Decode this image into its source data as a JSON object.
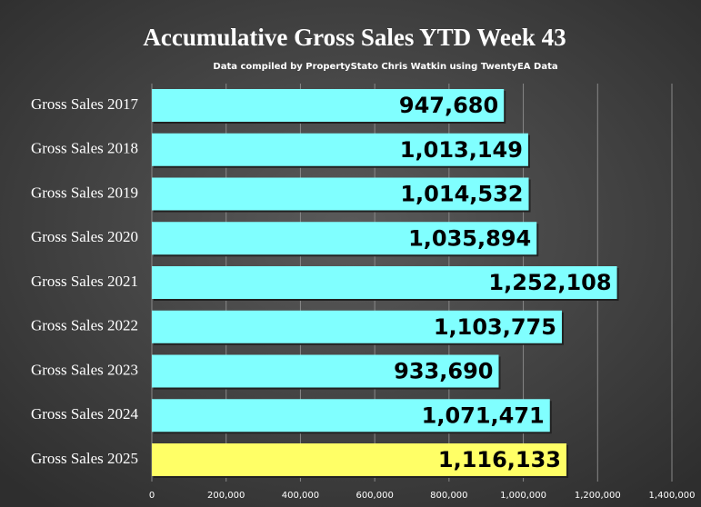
{
  "chart_data": {
    "type": "hbar",
    "title": "Accumulative Gross Sales YTD Week 43",
    "subtitle": "Data compiled by PropertyStato Chris Watkin using TwentyEA Data",
    "categories": [
      "Gross Sales 2017",
      "Gross Sales 2018",
      "Gross Sales 2019",
      "Gross Sales 2020",
      "Gross Sales 2021",
      "Gross Sales 2022",
      "Gross Sales 2023",
      "Gross Sales 2024",
      "Gross Sales 2025"
    ],
    "values": [
      947680,
      1013149,
      1014532,
      1035894,
      1252108,
      1103775,
      933690,
      1071471,
      1116133
    ],
    "value_labels": [
      "947,680",
      "1,013,149",
      "1,014,532",
      "1,035,894",
      "1,252,108",
      "1,103,775",
      "933,690",
      "1,071,471",
      "1,116,133"
    ],
    "colors": [
      "#80ffff",
      "#80ffff",
      "#80ffff",
      "#80ffff",
      "#80ffff",
      "#80ffff",
      "#80ffff",
      "#80ffff",
      "#ffff66"
    ],
    "xlim": [
      0,
      1400000
    ],
    "xticks": [
      0,
      {
        "value": 200000,
        "label": "200,000"
      },
      {
        "value": 400000,
        "label": "400,000"
      },
      {
        "value": 600000,
        "label": "600,000"
      },
      {
        "value": 800000,
        "label": "800,000"
      },
      {
        "value": 1000000,
        "label": "1,000,000"
      },
      {
        "value": 1200000,
        "label": "1,200,000"
      },
      {
        "value": 1400000,
        "label": "1,400,000"
      }
    ],
    "grid": true
  }
}
